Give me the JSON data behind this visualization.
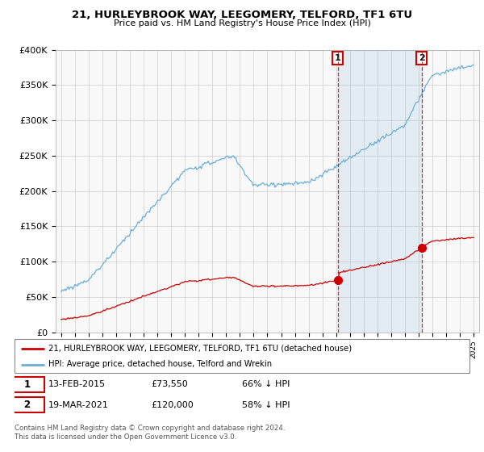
{
  "title": "21, HURLEYBROOK WAY, LEEGOMERY, TELFORD, TF1 6TU",
  "subtitle": "Price paid vs. HM Land Registry's House Price Index (HPI)",
  "hpi_label": "HPI: Average price, detached house, Telford and Wrekin",
  "property_label": "21, HURLEYBROOK WAY, LEEGOMERY, TELFORD, TF1 6TU (detached house)",
  "sale1_label": "13-FEB-2015",
  "sale1_price": "£73,550",
  "sale1_pct": "66% ↓ HPI",
  "sale2_label": "19-MAR-2021",
  "sale2_price": "£120,000",
  "sale2_pct": "58% ↓ HPI",
  "footer": "Contains HM Land Registry data © Crown copyright and database right 2024.\nThis data is licensed under the Open Government Licence v3.0.",
  "hpi_color": "#6baed6",
  "hpi_fill_color": "#ddeeff",
  "property_color": "#cc0000",
  "sale1_x": 2015.11,
  "sale2_x": 2021.22,
  "sale1_price_val": 73550,
  "sale2_price_val": 120000,
  "ylim_min": 0,
  "ylim_max": 400000,
  "bg_color": "#f8f8f8"
}
